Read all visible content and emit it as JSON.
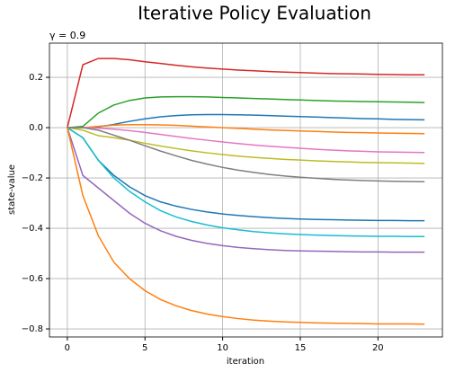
{
  "chart_data": {
    "type": "line",
    "title": "Iterative Policy Evaluation",
    "subtitle": "γ = 0.9",
    "x_label": "iteration",
    "y_label": "state-value",
    "x": [
      0,
      1,
      2,
      3,
      4,
      5,
      6,
      7,
      8,
      9,
      10,
      11,
      12,
      13,
      14,
      15,
      16,
      17,
      18,
      19,
      20,
      21,
      22,
      23
    ],
    "xlim": [
      -1.15,
      24.15
    ],
    "xticks": [
      0,
      5,
      10,
      15,
      20
    ],
    "ylim": [
      -0.832,
      0.336
    ],
    "yticks": [
      {
        "value": -0.8,
        "label": "−0.8"
      },
      {
        "value": -0.6,
        "label": "−0.6"
      },
      {
        "value": -0.4,
        "label": "−0.4"
      },
      {
        "value": -0.2,
        "label": "−0.2"
      },
      {
        "value": 0,
        "label": "0.0"
      },
      0.2
    ],
    "grid": true,
    "series": [
      {
        "color": "#d62728",
        "values": [
          0,
          0.25,
          0.275,
          0.275,
          0.27,
          0.262,
          0.255,
          0.248,
          0.242,
          0.237,
          0.233,
          0.229,
          0.226,
          0.223,
          0.221,
          0.219,
          0.217,
          0.215,
          0.214,
          0.213,
          0.212,
          0.211,
          0.21,
          0.21
        ]
      },
      {
        "color": "#2ca02c",
        "values": [
          0,
          0.005,
          0.058,
          0.09,
          0.108,
          0.118,
          0.122,
          0.123,
          0.123,
          0.122,
          0.12,
          0.118,
          0.116,
          0.114,
          0.112,
          0.11,
          0.108,
          0.106,
          0.105,
          0.104,
          0.103,
          0.102,
          0.101,
          0.1
        ]
      },
      {
        "color": "#1f77b4",
        "values": [
          0,
          0,
          0.003,
          0.013,
          0.025,
          0.035,
          0.043,
          0.048,
          0.051,
          0.052,
          0.052,
          0.051,
          0.05,
          0.048,
          0.046,
          0.044,
          0.042,
          0.04,
          0.038,
          0.036,
          0.035,
          0.033,
          0.032,
          0.031
        ]
      },
      {
        "color": "#ff7f0e",
        "values": [
          0,
          0,
          0.005,
          0.01,
          0.012,
          0.012,
          0.011,
          0.009,
          0.006,
          0.003,
          0,
          -0.003,
          -0.006,
          -0.009,
          -0.011,
          -0.013,
          -0.015,
          -0.017,
          -0.019,
          -0.02,
          -0.021,
          -0.022,
          -0.023,
          -0.024
        ]
      },
      {
        "color": "#e377c2",
        "values": [
          0,
          0,
          -0.002,
          -0.006,
          -0.012,
          -0.019,
          -0.027,
          -0.035,
          -0.043,
          -0.05,
          -0.057,
          -0.063,
          -0.069,
          -0.074,
          -0.078,
          -0.082,
          -0.086,
          -0.089,
          -0.092,
          -0.094,
          -0.096,
          -0.097,
          -0.098,
          -0.099
        ]
      },
      {
        "color": "#bcbd22",
        "values": [
          0,
          -0.01,
          -0.032,
          -0.04,
          -0.05,
          -0.062,
          -0.073,
          -0.083,
          -0.092,
          -0.1,
          -0.107,
          -0.113,
          -0.118,
          -0.122,
          -0.126,
          -0.129,
          -0.132,
          -0.134,
          -0.136,
          -0.138,
          -0.139,
          -0.14,
          -0.141,
          -0.142
        ]
      },
      {
        "color": "#7f7f7f",
        "values": [
          0,
          0,
          -0.01,
          -0.03,
          -0.05,
          -0.072,
          -0.093,
          -0.112,
          -0.13,
          -0.145,
          -0.158,
          -0.169,
          -0.178,
          -0.186,
          -0.192,
          -0.197,
          -0.201,
          -0.205,
          -0.208,
          -0.21,
          -0.212,
          -0.213,
          -0.214,
          -0.215
        ]
      },
      {
        "color": "#1f77b4",
        "values": [
          0,
          -0.04,
          -0.13,
          -0.19,
          -0.235,
          -0.27,
          -0.295,
          -0.312,
          -0.325,
          -0.335,
          -0.343,
          -0.349,
          -0.354,
          -0.358,
          -0.361,
          -0.363,
          -0.365,
          -0.366,
          -0.367,
          -0.368,
          -0.369,
          -0.369,
          -0.37,
          -0.37
        ]
      },
      {
        "color": "#17becf",
        "values": [
          0,
          -0.04,
          -0.13,
          -0.2,
          -0.253,
          -0.295,
          -0.33,
          -0.355,
          -0.373,
          -0.387,
          -0.398,
          -0.406,
          -0.413,
          -0.418,
          -0.422,
          -0.425,
          -0.427,
          -0.429,
          -0.43,
          -0.431,
          -0.432,
          -0.432,
          -0.433,
          -0.433
        ]
      },
      {
        "color": "#9467bd",
        "values": [
          0,
          -0.19,
          -0.24,
          -0.29,
          -0.34,
          -0.38,
          -0.41,
          -0.432,
          -0.448,
          -0.46,
          -0.469,
          -0.476,
          -0.481,
          -0.485,
          -0.488,
          -0.49,
          -0.491,
          -0.492,
          -0.493,
          -0.494,
          -0.494,
          -0.495,
          -0.495,
          -0.495
        ]
      },
      {
        "color": "#ff7f0e",
        "values": [
          0,
          -0.27,
          -0.43,
          -0.535,
          -0.6,
          -0.648,
          -0.683,
          -0.708,
          -0.727,
          -0.741,
          -0.751,
          -0.759,
          -0.765,
          -0.769,
          -0.772,
          -0.774,
          -0.776,
          -0.777,
          -0.778,
          -0.779,
          -0.78,
          -0.78,
          -0.78,
          -0.781
        ]
      }
    ]
  }
}
